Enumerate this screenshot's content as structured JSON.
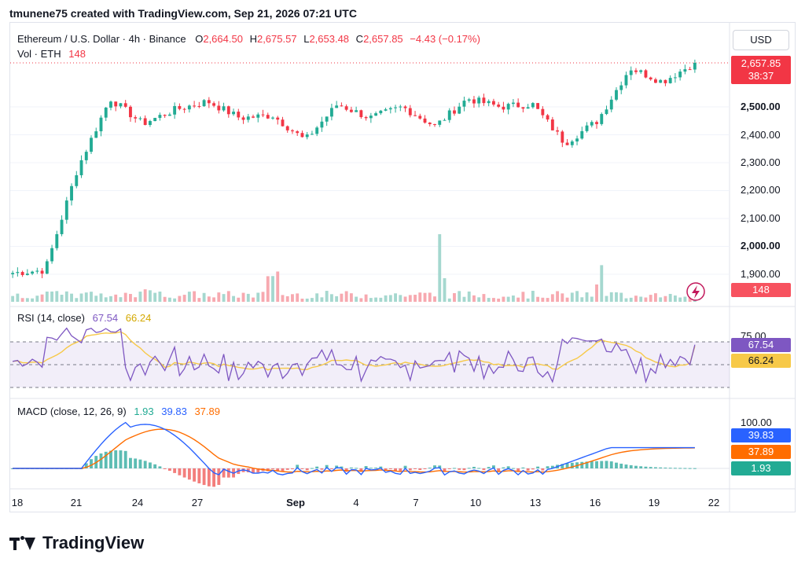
{
  "header": {
    "attribution": "tmunene75 created with TradingView.com, Sep 21, 2026 07:21 UTC"
  },
  "legend": {
    "symbol": "Ethereum / U.S. Dollar · 4h · Binance",
    "o_label": "O",
    "o_value": "2,664.50",
    "h_label": "H",
    "h_value": "2,675.57",
    "l_label": "L",
    "l_value": "2,653.48",
    "c_label": "C",
    "c_value": "2,657.85",
    "change": "−4.43 (−0.17%)",
    "vol_label": "Vol · ETH",
    "vol_value": "148"
  },
  "currency_button": "USD",
  "price_axis": {
    "ticks": [
      "2,500.00",
      "2,400.00",
      "2,300.00",
      "2,200.00",
      "2,100.00",
      "2,000.00",
      "1,900.00"
    ],
    "last_price": "2,657.85",
    "countdown": "38:37",
    "volume_tag": "148"
  },
  "rsi": {
    "label": "RSI (14, close)",
    "rsi_value": "67.54",
    "ma_value": "66.24",
    "level_label": "75.00",
    "tag_rsi": "67.54",
    "tag_ma": "66.24"
  },
  "macd": {
    "label": "MACD (close, 12, 26, 9)",
    "hist_value": "1.93",
    "macd_value": "39.83",
    "signal_value": "37.89",
    "axis_top": "100.00",
    "tag_macd": "39.83",
    "tag_signal": "37.89",
    "tag_hist": "1.93"
  },
  "time_axis": {
    "labels": [
      "18",
      "21",
      "24",
      "27",
      "Sep",
      "4",
      "7",
      "10",
      "13",
      "16",
      "19",
      "22"
    ]
  },
  "brand": {
    "logo_text": "TV",
    "name": "TradingView"
  },
  "colors": {
    "up": "#22ab94",
    "down": "#f23645",
    "rsi_line": "#7e57c2",
    "rsi_ma": "#f7c948",
    "macd_line": "#2962ff",
    "signal_line": "#ff6d00"
  },
  "chart_data": [
    {
      "type": "candlestick",
      "title": "Ethereum / U.S. Dollar · 4h · Binance",
      "x": [
        "18",
        "21",
        "24",
        "27",
        "Sep",
        "4",
        "7",
        "10",
        "13",
        "16",
        "19",
        "22"
      ],
      "ylim": [
        1860,
        2700
      ],
      "anchors": [
        {
          "x": "18",
          "close": 1905
        },
        {
          "x": "20",
          "close": 1915
        },
        {
          "x": "21",
          "close": 2280
        },
        {
          "x": "22",
          "close": 2530
        },
        {
          "x": "23",
          "close": 2440
        },
        {
          "x": "24",
          "close": 2490
        },
        {
          "x": "27",
          "close": 2520
        },
        {
          "x": "28",
          "close": 2460
        },
        {
          "x": "Sep 1",
          "close": 2470
        },
        {
          "x": "Sep 2",
          "close": 2380
        },
        {
          "x": "4",
          "close": 2510
        },
        {
          "x": "5",
          "close": 2460
        },
        {
          "x": "7",
          "close": 2500
        },
        {
          "x": "10",
          "close": 2430
        },
        {
          "x": "11",
          "close": 2530
        },
        {
          "x": "13",
          "close": 2500
        },
        {
          "x": "14",
          "close": 2510
        },
        {
          "x": "16",
          "close": 2370
        },
        {
          "x": "18",
          "close": 2450
        },
        {
          "x": "19",
          "close": 2640
        },
        {
          "x": "20",
          "close": 2590
        },
        {
          "x": "21",
          "close": 2657.85
        }
      ],
      "volume_spikes": [
        {
          "x": "4",
          "volume": "high"
        },
        {
          "x": "11",
          "volume": "highest"
        },
        {
          "x": "19",
          "volume": "high"
        }
      ]
    },
    {
      "type": "line",
      "title": "RSI (14, close)",
      "ylim": [
        30,
        80
      ],
      "series": [
        {
          "name": "RSI",
          "last": 67.54
        },
        {
          "name": "RSI MA",
          "last": 66.24
        }
      ],
      "levels": [
        70,
        50,
        30
      ]
    },
    {
      "type": "line",
      "title": "MACD (close, 12, 26, 9)",
      "series": [
        {
          "name": "MACD",
          "last": 39.83
        },
        {
          "name": "Signal",
          "last": 37.89
        },
        {
          "name": "Histogram",
          "last": 1.93
        }
      ]
    }
  ]
}
